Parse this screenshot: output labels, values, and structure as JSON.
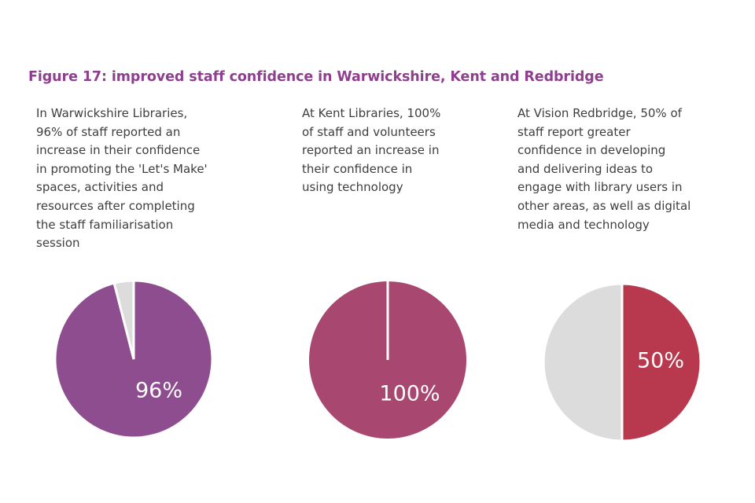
{
  "figure_title": "Figure 17: improved staff confidence in Warwickshire, Kent and Redbridge",
  "panels": [
    {
      "text": "In Warwickshire Libraries,\n96% of staff reported an\nincrease in their confidence\nin promoting the 'Let's Make'\nspaces, activities and\nresources after completing\nthe staff familiarisation\nsession",
      "label": "96%"
    },
    {
      "text": "At Kent Libraries, 100%\nof staff and volunteers\nreported an increase in\ntheir confidence in\nusing technology",
      "label": "100%"
    },
    {
      "text": "At Vision Redbridge, 50% of\nstaff report greater\nconfidence in developing\nand delivering ideas to\nengage with library users in\nother areas, as well as digital\nmedia and technology",
      "label": "50%"
    }
  ],
  "chart_data": [
    {
      "type": "pie",
      "slices": [
        {
          "value": 96,
          "color": "#8e4d8e"
        },
        {
          "value": 4,
          "color": "#dcdcdc"
        }
      ],
      "data_labels": [
        "96%"
      ]
    },
    {
      "type": "pie",
      "slices": [
        {
          "value": 100,
          "color": "#a8476f"
        }
      ],
      "data_labels": [
        "100%"
      ]
    },
    {
      "type": "pie",
      "slices": [
        {
          "value": 50,
          "color": "#b8394d"
        },
        {
          "value": 50,
          "color": "#dcdcdc"
        }
      ],
      "data_labels": [
        "50%"
      ]
    }
  ]
}
